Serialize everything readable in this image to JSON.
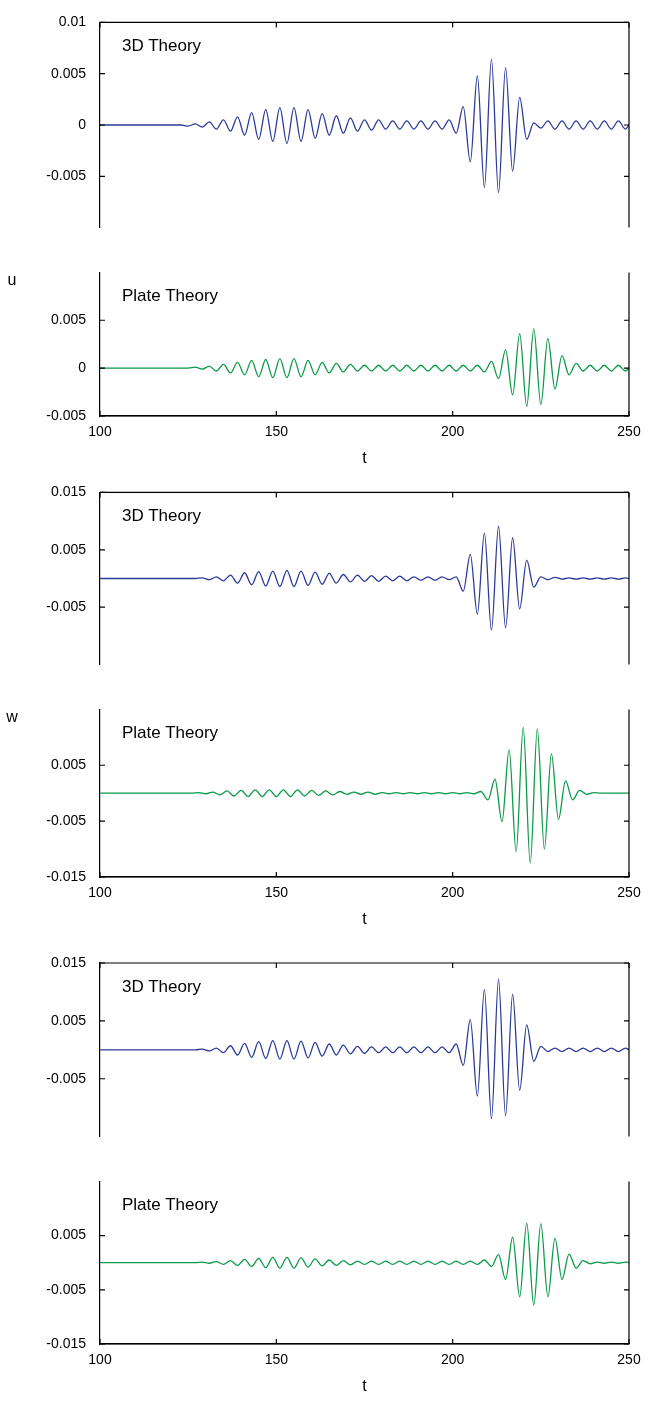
{
  "chart_data": [
    {
      "type": "line",
      "tick_labels": "y",
      "xlim": [
        100,
        250
      ],
      "xticks": [
        100,
        150,
        200,
        250
      ],
      "ylim": [
        -0.01,
        0.01
      ],
      "yticks": [
        -0.005,
        0,
        0.005,
        0.01
      ],
      "x": [
        100,
        120,
        123,
        125,
        127,
        129,
        131,
        133,
        135,
        137,
        139,
        141,
        143,
        145,
        147,
        149,
        151,
        153,
        155,
        157,
        159,
        161,
        163,
        165,
        167,
        169,
        171,
        173,
        175,
        177,
        179,
        181,
        183,
        185,
        187,
        189,
        191,
        193,
        195,
        197,
        199,
        201,
        203,
        205,
        207,
        209,
        211,
        213,
        215,
        217,
        219,
        221,
        223,
        225,
        227,
        229,
        231,
        233,
        235,
        237,
        239,
        241,
        243,
        245,
        247,
        249,
        250
      ],
      "series": [
        {
          "name": "3D Theory",
          "color": "#2b3a98",
          "values": [
            0,
            0,
            0,
            -0.0001,
            0.0001,
            -0.0002,
            0.0003,
            -0.0004,
            0.0005,
            -0.0006,
            0.0008,
            -0.001,
            0.0012,
            -0.0014,
            0.0015,
            -0.0016,
            0.0017,
            -0.0018,
            0.0017,
            -0.0016,
            0.0015,
            -0.0013,
            0.0011,
            -0.001,
            0.0009,
            -0.0008,
            0.0007,
            -0.0006,
            0.0005,
            -0.0005,
            0.0005,
            -0.0004,
            0.0004,
            -0.0004,
            0.0004,
            -0.0004,
            0.0004,
            -0.0004,
            0.0004,
            -0.0004,
            0.0005,
            -0.0008,
            0.0018,
            -0.0036,
            0.0048,
            -0.0061,
            0.0064,
            -0.0066,
            0.0056,
            -0.0045,
            0.0027,
            -0.0014,
            0.0002,
            -0.0003,
            0.0004,
            -0.0004,
            0.0004,
            -0.0004,
            0.0004,
            -0.0004,
            0.0004,
            -0.0004,
            0.0004,
            -0.0004,
            0.0004,
            -0.0004,
            0
          ]
        }
      ]
    },
    {
      "type": "line",
      "xlabel": "t",
      "ylabel": "u",
      "xlim": [
        100,
        250
      ],
      "xticks": [
        100,
        150,
        200,
        250
      ],
      "ylim": [
        -0.005,
        0.01
      ],
      "yticks": [
        -0.005,
        0,
        0.005
      ],
      "x": [
        100,
        120,
        123,
        125,
        127,
        129,
        131,
        133,
        135,
        137,
        139,
        141,
        143,
        145,
        147,
        149,
        151,
        153,
        155,
        157,
        159,
        161,
        163,
        165,
        167,
        169,
        171,
        173,
        175,
        177,
        179,
        181,
        183,
        185,
        187,
        189,
        191,
        193,
        195,
        197,
        199,
        201,
        203,
        205,
        207,
        209,
        211,
        213,
        215,
        217,
        219,
        221,
        223,
        225,
        227,
        229,
        231,
        233,
        235,
        237,
        239,
        241,
        243,
        245,
        247,
        249,
        250
      ],
      "series": [
        {
          "name": "Plate Theory",
          "color": "#0a9a48",
          "values": [
            0,
            0,
            0,
            0,
            0.0001,
            -0.0001,
            0.0002,
            -0.0003,
            0.0004,
            -0.0005,
            0.0006,
            -0.0007,
            0.0008,
            -0.0009,
            0.0009,
            -0.001,
            0.001,
            -0.001,
            0.001,
            -0.0009,
            0.0008,
            -0.0007,
            0.0006,
            -0.0005,
            0.0005,
            -0.0004,
            0.0004,
            -0.0003,
            0.0003,
            -0.0003,
            0.0003,
            -0.0003,
            0.0003,
            -0.0003,
            0.0003,
            -0.0003,
            0.0003,
            -0.0003,
            0.0003,
            -0.0003,
            0.0003,
            -0.0003,
            0.0003,
            -0.0003,
            0.0003,
            -0.0004,
            0.0007,
            -0.0011,
            0.0019,
            -0.0028,
            0.0036,
            -0.004,
            0.0041,
            -0.0038,
            0.0031,
            -0.0022,
            0.0013,
            -0.0007,
            0.0005,
            -0.0003,
            0.0003,
            -0.0003,
            0.0003,
            -0.0003,
            0.0003,
            -0.0003,
            0
          ]
        }
      ]
    },
    {
      "type": "line",
      "tick_labels": "y",
      "xlim": [
        100,
        250
      ],
      "xticks": [
        100,
        150,
        200,
        250
      ],
      "ylim": [
        -0.015,
        0.015
      ],
      "yticks": [
        -0.005,
        0.005,
        0.015
      ],
      "x": [
        100,
        120,
        123,
        125,
        127,
        129,
        131,
        133,
        135,
        137,
        139,
        141,
        143,
        145,
        147,
        149,
        151,
        153,
        155,
        157,
        159,
        161,
        163,
        165,
        167,
        169,
        171,
        173,
        175,
        177,
        179,
        181,
        183,
        185,
        187,
        189,
        191,
        193,
        195,
        197,
        199,
        201,
        203,
        205,
        207,
        209,
        211,
        213,
        215,
        217,
        219,
        221,
        223,
        225,
        227,
        229,
        231,
        233,
        235,
        237,
        239,
        241,
        243,
        245,
        247,
        249,
        250
      ],
      "series": [
        {
          "name": "3D Theory",
          "color": "#2b3a98",
          "values": [
            0,
            0,
            0,
            0,
            0,
            0.0001,
            -0.0002,
            0.0003,
            -0.0004,
            0.0006,
            -0.0008,
            0.001,
            -0.0011,
            0.0012,
            -0.0013,
            0.0013,
            -0.0014,
            0.0014,
            -0.0014,
            0.0013,
            -0.0012,
            0.0011,
            -0.001,
            0.0009,
            -0.0008,
            0.0007,
            -0.0006,
            0.0006,
            -0.0005,
            0.0005,
            -0.0005,
            0.0004,
            -0.0004,
            0.0004,
            -0.0004,
            0.0003,
            -0.0003,
            0.0003,
            -0.0003,
            0.0003,
            -0.0002,
            0.0003,
            -0.0022,
            0.0042,
            -0.0062,
            0.0079,
            -0.009,
            0.0091,
            -0.0086,
            0.0071,
            -0.0053,
            0.0032,
            -0.0015,
            0.0003,
            -0.0002,
            0.0002,
            -0.0001,
            0.0001,
            -0.0001,
            0.0001,
            -0.0001,
            0.0001,
            -0.0001,
            0.0001,
            -0.0001,
            0.0001,
            0
          ]
        }
      ]
    },
    {
      "type": "line",
      "xlabel": "t",
      "ylabel": "w",
      "xlim": [
        100,
        250
      ],
      "xticks": [
        100,
        150,
        200,
        250
      ],
      "ylim": [
        -0.015,
        0.015
      ],
      "yticks": [
        -0.015,
        -0.005,
        0.005
      ],
      "x": [
        100,
        120,
        122,
        124,
        126,
        128,
        130,
        132,
        134,
        136,
        138,
        140,
        142,
        144,
        146,
        148,
        150,
        152,
        154,
        156,
        158,
        160,
        162,
        164,
        166,
        168,
        170,
        172,
        174,
        176,
        178,
        180,
        182,
        184,
        186,
        188,
        190,
        192,
        194,
        196,
        198,
        200,
        202,
        204,
        206,
        208,
        210,
        212,
        214,
        216,
        218,
        220,
        222,
        224,
        226,
        228,
        230,
        232,
        234,
        236,
        238,
        240,
        242,
        244,
        246,
        248,
        250
      ],
      "series": [
        {
          "name": "Plate Theory",
          "color": "#0a9a48",
          "values": [
            0,
            0,
            0,
            0,
            0,
            0.0001,
            -0.0001,
            0.0002,
            -0.0003,
            0.0004,
            -0.0005,
            0.0005,
            -0.0006,
            0.0006,
            -0.0006,
            0.0006,
            -0.0006,
            0.0006,
            -0.0006,
            0.0006,
            -0.0005,
            0.0005,
            -0.0004,
            0.0004,
            -0.0003,
            0.0003,
            -0.0002,
            0.0002,
            -0.0002,
            0.0002,
            -0.0002,
            0.0001,
            -0.0001,
            0.0001,
            -0.0001,
            0.0001,
            -0.0001,
            0.0001,
            -0.0001,
            0.0001,
            -0.0001,
            0.0001,
            -0.0001,
            0.0001,
            -0.0001,
            0.0003,
            -0.0012,
            0.0025,
            -0.0051,
            0.0078,
            -0.0105,
            0.0118,
            -0.0125,
            0.0115,
            -0.01,
            0.0071,
            -0.0047,
            0.0022,
            -0.0012,
            0.0005,
            -0.0002,
            0.0001,
            0,
            0,
            0,
            0,
            0
          ]
        }
      ]
    },
    {
      "type": "line",
      "tick_labels": "y",
      "xlim": [
        100,
        250
      ],
      "xticks": [
        100,
        150,
        200,
        250
      ],
      "ylim": [
        -0.015,
        0.015
      ],
      "yticks": [
        -0.005,
        0.005,
        0.015
      ],
      "x": [
        100,
        120,
        123,
        125,
        127,
        129,
        131,
        133,
        135,
        137,
        139,
        141,
        143,
        145,
        147,
        149,
        151,
        153,
        155,
        157,
        159,
        161,
        163,
        165,
        167,
        169,
        171,
        173,
        175,
        177,
        179,
        181,
        183,
        185,
        187,
        189,
        191,
        193,
        195,
        197,
        199,
        201,
        203,
        205,
        207,
        209,
        211,
        213,
        215,
        217,
        219,
        221,
        223,
        225,
        227,
        229,
        231,
        233,
        235,
        237,
        239,
        241,
        243,
        245,
        247,
        249,
        250
      ],
      "series": [
        {
          "name": "3D Theory",
          "color": "#2b3a98",
          "values": [
            0,
            0,
            0,
            0,
            0,
            0.0001,
            -0.0002,
            0.0003,
            -0.0005,
            0.0007,
            -0.0009,
            0.0011,
            -0.0013,
            0.0014,
            -0.0015,
            0.0016,
            -0.0016,
            0.0016,
            -0.0016,
            0.0015,
            -0.0014,
            0.0013,
            -0.0011,
            0.001,
            -0.0009,
            0.0008,
            -0.0007,
            0.0006,
            -0.0006,
            0.0005,
            -0.0005,
            0.0005,
            -0.0005,
            0.0005,
            -0.0005,
            0.0005,
            -0.0005,
            0.0005,
            -0.0005,
            0.0005,
            -0.0005,
            0.001,
            -0.0027,
            0.0052,
            -0.008,
            0.0104,
            -0.0119,
            0.0122,
            -0.0114,
            0.0096,
            -0.007,
            0.0043,
            -0.002,
            0.0006,
            -0.0003,
            0.0003,
            -0.0003,
            0.0003,
            -0.0003,
            0.0003,
            -0.0003,
            0.0003,
            -0.0003,
            0.0003,
            -0.0003,
            0.0003,
            0
          ]
        }
      ]
    },
    {
      "type": "line",
      "xlabel": "t",
      "xlim": [
        100,
        250
      ],
      "xticks": [
        100,
        150,
        200,
        250
      ],
      "ylim": [
        -0.015,
        0.015
      ],
      "yticks": [
        -0.015,
        -0.005,
        0.005
      ],
      "x": [
        100,
        120,
        123,
        125,
        127,
        129,
        131,
        133,
        135,
        137,
        139,
        141,
        143,
        145,
        147,
        149,
        151,
        153,
        155,
        157,
        159,
        161,
        163,
        165,
        167,
        169,
        171,
        173,
        175,
        177,
        179,
        181,
        183,
        185,
        187,
        189,
        191,
        193,
        195,
        197,
        199,
        201,
        203,
        205,
        207,
        209,
        211,
        213,
        215,
        217,
        219,
        221,
        223,
        225,
        227,
        229,
        231,
        233,
        235,
        237,
        239,
        241,
        243,
        245,
        247,
        249,
        250
      ],
      "series": [
        {
          "name": "Plate Theory",
          "color": "#0a9a48",
          "values": [
            0,
            0,
            0,
            0,
            0,
            0.0001,
            -0.0001,
            0.0002,
            -0.0003,
            0.0004,
            -0.0005,
            0.0006,
            -0.0007,
            0.0008,
            -0.0009,
            0.001,
            -0.001,
            0.001,
            -0.001,
            0.0009,
            -0.0008,
            0.0007,
            -0.0006,
            0.0005,
            -0.0005,
            0.0004,
            -0.0004,
            0.0003,
            -0.0003,
            0.0003,
            -0.0003,
            0.0003,
            -0.0003,
            0.0003,
            -0.0003,
            0.0003,
            -0.0003,
            0.0003,
            -0.0003,
            0.0003,
            -0.0003,
            0.0003,
            -0.0003,
            0.0003,
            -0.0003,
            0.0005,
            -0.0007,
            0.0015,
            -0.0031,
            0.0047,
            -0.0063,
            0.0073,
            -0.0078,
            0.0072,
            -0.0063,
            0.0045,
            -0.0031,
            0.0016,
            -0.001,
            0.0004,
            -0.0002,
            0.0001,
            -0.0001,
            0.0001,
            -0.0001,
            0.0001,
            0
          ]
        }
      ]
    }
  ]
}
